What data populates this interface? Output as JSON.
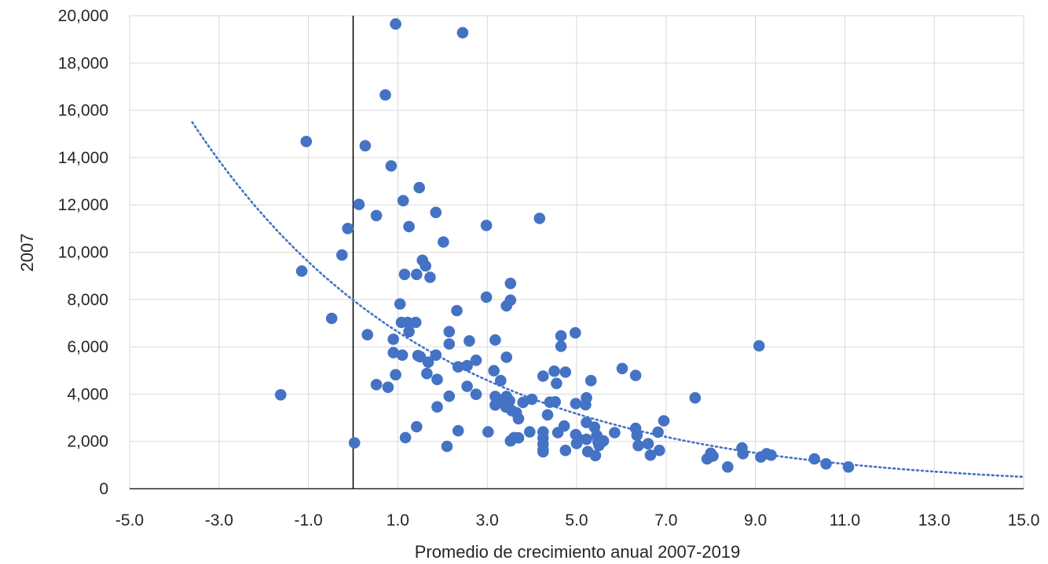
{
  "chart_data": {
    "type": "scatter",
    "title": "",
    "xlabel": "Promedio de crecimiento anual 2007-2019",
    "ylabel": "2007",
    "xlim": [
      -5,
      15
    ],
    "ylim": [
      0,
      20000
    ],
    "x_ticks": [
      "-5.0",
      "-3.0",
      "-1.0",
      "1.0",
      "3.0",
      "5.0",
      "7.0",
      "9.0",
      "11.0",
      "13.0",
      "15.0"
    ],
    "y_ticks": [
      "0",
      "2,000",
      "4,000",
      "6,000",
      "8,000",
      "10,000",
      "12,000",
      "14,000",
      "16,000",
      "18,000",
      "20,000"
    ],
    "grid": true,
    "legend": "none",
    "marker_color": "#4472c4",
    "trendline": {
      "type": "exponential",
      "style": "dotted",
      "color": "#4472c4",
      "x_start": -3.6,
      "x_end": 15.0,
      "y_start": 15500,
      "y_end": 500
    },
    "reference_line": {
      "x": 0.0,
      "color": "#000000"
    },
    "points": [
      [
        0.95,
        19650
      ],
      [
        2.45,
        19280
      ],
      [
        0.72,
        16650
      ],
      [
        -1.05,
        14680
      ],
      [
        0.27,
        14500
      ],
      [
        0.85,
        13650
      ],
      [
        1.48,
        12730
      ],
      [
        0.13,
        12020
      ],
      [
        1.12,
        12180
      ],
      [
        1.85,
        11680
      ],
      [
        0.52,
        11550
      ],
      [
        4.17,
        11430
      ],
      [
        -0.12,
        11000
      ],
      [
        2.98,
        11130
      ],
      [
        1.25,
        11080
      ],
      [
        2.02,
        10430
      ],
      [
        -0.25,
        9880
      ],
      [
        -1.15,
        9200
      ],
      [
        1.55,
        9660
      ],
      [
        1.62,
        9420
      ],
      [
        1.15,
        9060
      ],
      [
        1.42,
        9060
      ],
      [
        1.72,
        8940
      ],
      [
        3.52,
        8680
      ],
      [
        1.05,
        7810
      ],
      [
        2.98,
        8100
      ],
      [
        3.52,
        7970
      ],
      [
        3.43,
        7730
      ],
      [
        2.32,
        7530
      ],
      [
        -0.48,
        7200
      ],
      [
        1.08,
        7030
      ],
      [
        1.22,
        7030
      ],
      [
        1.4,
        7030
      ],
      [
        2.15,
        6640
      ],
      [
        1.25,
        6640
      ],
      [
        4.65,
        6460
      ],
      [
        0.32,
        6510
      ],
      [
        0.9,
        6320
      ],
      [
        3.18,
        6290
      ],
      [
        2.6,
        6250
      ],
      [
        2.15,
        6120
      ],
      [
        4.65,
        6020
      ],
      [
        4.97,
        6590
      ],
      [
        9.08,
        6040
      ],
      [
        0.9,
        5750
      ],
      [
        1.1,
        5650
      ],
      [
        1.45,
        5630
      ],
      [
        1.5,
        5580
      ],
      [
        1.85,
        5650
      ],
      [
        3.43,
        5560
      ],
      [
        1.68,
        5350
      ],
      [
        2.75,
        5430
      ],
      [
        2.55,
        5200
      ],
      [
        2.35,
        5150
      ],
      [
        6.02,
        5080
      ],
      [
        3.15,
        4990
      ],
      [
        4.5,
        4970
      ],
      [
        4.75,
        4930
      ],
      [
        1.65,
        4870
      ],
      [
        0.95,
        4820
      ],
      [
        4.25,
        4760
      ],
      [
        6.32,
        4790
      ],
      [
        1.88,
        4620
      ],
      [
        3.3,
        4570
      ],
      [
        5.32,
        4570
      ],
      [
        0.52,
        4400
      ],
      [
        0.78,
        4290
      ],
      [
        2.55,
        4330
      ],
      [
        4.55,
        4450
      ],
      [
        -1.62,
        3970
      ],
      [
        2.15,
        3910
      ],
      [
        2.75,
        3990
      ],
      [
        3.18,
        3900
      ],
      [
        3.43,
        3900
      ],
      [
        5.22,
        3840
      ],
      [
        7.65,
        3840
      ],
      [
        3.35,
        3760
      ],
      [
        3.5,
        3720
      ],
      [
        3.8,
        3650
      ],
      [
        4.0,
        3780
      ],
      [
        4.4,
        3660
      ],
      [
        4.52,
        3670
      ],
      [
        4.98,
        3600
      ],
      [
        5.2,
        3550
      ],
      [
        3.18,
        3540
      ],
      [
        1.88,
        3460
      ],
      [
        3.42,
        3450
      ],
      [
        3.55,
        3300
      ],
      [
        3.65,
        3210
      ],
      [
        4.35,
        3120
      ],
      [
        3.7,
        2960
      ],
      [
        6.95,
        2870
      ],
      [
        5.22,
        2800
      ],
      [
        4.72,
        2650
      ],
      [
        5.4,
        2600
      ],
      [
        6.32,
        2550
      ],
      [
        1.42,
        2620
      ],
      [
        2.35,
        2450
      ],
      [
        3.02,
        2400
      ],
      [
        3.95,
        2400
      ],
      [
        4.25,
        2400
      ],
      [
        4.58,
        2370
      ],
      [
        5.85,
        2370
      ],
      [
        6.82,
        2390
      ],
      [
        4.98,
        2290
      ],
      [
        5.45,
        2250
      ],
      [
        6.35,
        2260
      ],
      [
        3.6,
        2160
      ],
      [
        3.7,
        2150
      ],
      [
        1.17,
        2160
      ],
      [
        4.25,
        2140
      ],
      [
        5.05,
        2100
      ],
      [
        5.22,
        2090
      ],
      [
        5.6,
        2020
      ],
      [
        3.52,
        2020
      ],
      [
        5.48,
        1980
      ],
      [
        5.0,
        1910
      ],
      [
        4.25,
        1880
      ],
      [
        6.38,
        1820
      ],
      [
        6.6,
        1900
      ],
      [
        5.5,
        1830
      ],
      [
        2.1,
        1790
      ],
      [
        4.25,
        1650
      ],
      [
        0.03,
        1940
      ],
      [
        4.25,
        1560
      ],
      [
        4.75,
        1620
      ],
      [
        5.25,
        1570
      ],
      [
        6.85,
        1620
      ],
      [
        5.42,
        1400
      ],
      [
        6.65,
        1420
      ],
      [
        8.0,
        1500
      ],
      [
        8.7,
        1720
      ],
      [
        8.72,
        1480
      ],
      [
        9.25,
        1480
      ],
      [
        9.35,
        1420
      ],
      [
        8.05,
        1380
      ],
      [
        7.92,
        1260
      ],
      [
        9.12,
        1340
      ],
      [
        10.32,
        1260
      ],
      [
        10.58,
        1050
      ],
      [
        8.38,
        920
      ],
      [
        11.08,
        920
      ]
    ]
  }
}
